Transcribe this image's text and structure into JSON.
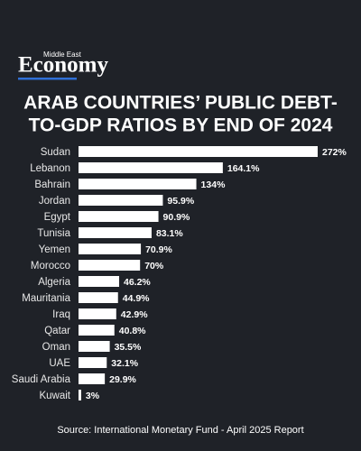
{
  "logo": {
    "top": "Middle East",
    "name": "Economy"
  },
  "chart_data": {
    "type": "bar",
    "orientation": "horizontal",
    "title": [
      "ARAB COUNTRIES’ PUBLIC DEBT-",
      "TO-GDP RATIOS BY END OF 2024"
    ],
    "categories": [
      "Sudan",
      "Lebanon",
      "Bahrain",
      "Jordan",
      "Egypt",
      "Tunisia",
      "Yemen",
      "Morocco",
      "Algeria",
      "Mauritania",
      "Iraq",
      "Qatar",
      "Oman",
      "UAE",
      "Saudi Arabia",
      "Kuwait"
    ],
    "values": [
      272,
      164.1,
      134,
      95.9,
      90.9,
      83.1,
      70.9,
      70,
      46.2,
      44.9,
      42.9,
      40.8,
      35.5,
      32.1,
      29.9,
      3
    ],
    "value_labels": [
      "272%",
      "164.1%",
      "134%",
      "95.9%",
      "90.9%",
      "83.1%",
      "70.9%",
      "70%",
      "46.2%",
      "44.9%",
      "42.9%",
      "40.8%",
      "35.5%",
      "32.1%",
      "29.9%",
      "3%"
    ],
    "color": "#ffffff",
    "source": "Source: International Monetary Fund - April 2025 Report"
  }
}
